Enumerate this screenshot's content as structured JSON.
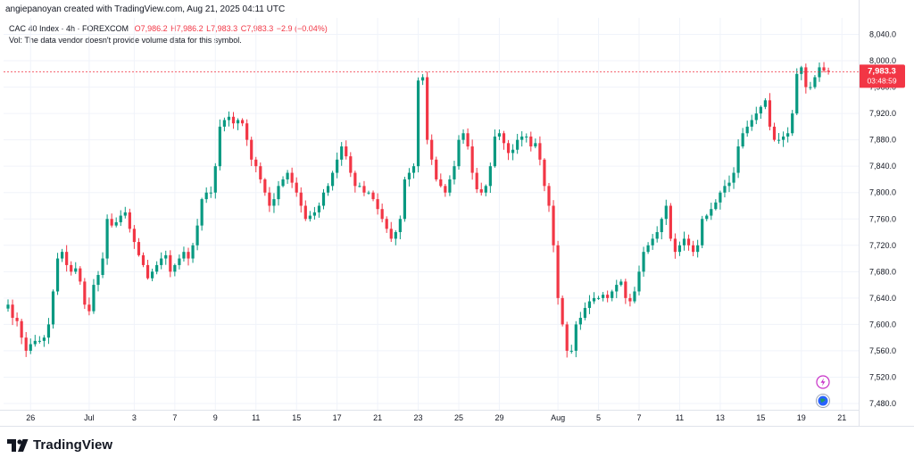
{
  "header": {
    "author_line": "angiepanoyan created with TradingView.com, Aug 21, 2025 04:11 UTC"
  },
  "legend": {
    "symbol": "CAC 40 Index · 4h · FOREXCOM",
    "open": "O7,986.2",
    "high": "H7,986.2",
    "low": "L7,983.3",
    "close": "C7,983.3",
    "change": "−2.9 (−0.04%)",
    "volume_note": "Vol: The data vendor doesn't provide volume data for this symbol."
  },
  "price_tag": {
    "price": "7,983.3",
    "countdown": "03:48:59"
  },
  "brand": {
    "name": "TradingView",
    "icon": "tradingview-logo-icon"
  },
  "side_icons": [
    "lightning-icon",
    "globe-icon"
  ],
  "colors": {
    "up": "#089981",
    "down": "#f23645",
    "grid": "#f0f3fa",
    "axis_text": "#131722"
  },
  "chart_data": {
    "type": "candlestick",
    "interval": "4h",
    "title": "",
    "xlabel": "",
    "ylabel": "",
    "ylim": [
      7460,
      8060
    ],
    "yticks": [
      8040,
      8000,
      7960,
      7920,
      7880,
      7840,
      7800,
      7760,
      7720,
      7680,
      7640,
      7600,
      7560,
      7520,
      7480
    ],
    "ytick_labels": [
      "8,040.0",
      "8,000.0",
      "7,960.0",
      "7,920.0",
      "7,880.0",
      "7,840.0",
      "7,800.0",
      "7,760.0",
      "7,720.0",
      "7,680.0",
      "7,640.0",
      "7,600.0",
      "7,560.0",
      "7,520.0",
      "7,480.0"
    ],
    "xticks": [
      {
        "label": "26",
        "index": 5
      },
      {
        "label": "Jul",
        "index": 18
      },
      {
        "label": "3",
        "index": 28
      },
      {
        "label": "7",
        "index": 37
      },
      {
        "label": "9",
        "index": 46
      },
      {
        "label": "11",
        "index": 55
      },
      {
        "label": "15",
        "index": 64
      },
      {
        "label": "17",
        "index": 73
      },
      {
        "label": "21",
        "index": 82
      },
      {
        "label": "23",
        "index": 91
      },
      {
        "label": "25",
        "index": 100
      },
      {
        "label": "29",
        "index": 109
      },
      {
        "label": "Aug",
        "index": 122
      },
      {
        "label": "5",
        "index": 131
      },
      {
        "label": "7",
        "index": 140
      },
      {
        "label": "11",
        "index": 149
      },
      {
        "label": "13",
        "index": 158
      },
      {
        "label": "15",
        "index": 167
      },
      {
        "label": "19",
        "index": 176
      },
      {
        "label": "21",
        "index": 185
      }
    ],
    "close_values": [
      7630,
      7610,
      7605,
      7580,
      7560,
      7570,
      7575,
      7575,
      7580,
      7600,
      7650,
      7700,
      7710,
      7690,
      7680,
      7685,
      7665,
      7630,
      7620,
      7660,
      7675,
      7700,
      7760,
      7750,
      7755,
      7765,
      7770,
      7745,
      7725,
      7705,
      7690,
      7670,
      7680,
      7690,
      7700,
      7705,
      7680,
      7690,
      7700,
      7710,
      7700,
      7720,
      7750,
      7790,
      7800,
      7800,
      7840,
      7900,
      7910,
      7915,
      7905,
      7910,
      7905,
      7880,
      7850,
      7840,
      7820,
      7800,
      7780,
      7790,
      7810,
      7820,
      7830,
      7815,
      7800,
      7780,
      7760,
      7765,
      7770,
      7780,
      7800,
      7810,
      7830,
      7850,
      7870,
      7855,
      7830,
      7810,
      7810,
      7800,
      7800,
      7790,
      7775,
      7760,
      7745,
      7730,
      7740,
      7760,
      7820,
      7830,
      7840,
      7970,
      7975,
      7880,
      7850,
      7820,
      7810,
      7800,
      7820,
      7840,
      7880,
      7890,
      7870,
      7830,
      7805,
      7800,
      7810,
      7840,
      7885,
      7890,
      7875,
      7860,
      7865,
      7880,
      7885,
      7885,
      7870,
      7875,
      7850,
      7810,
      7780,
      7720,
      7640,
      7600,
      7560,
      7560,
      7600,
      7610,
      7625,
      7635,
      7640,
      7640,
      7645,
      7640,
      7650,
      7660,
      7665,
      7640,
      7635,
      7650,
      7680,
      7710,
      7720,
      7730,
      7740,
      7760,
      7780,
      7730,
      7710,
      7720,
      7730,
      7720,
      7710,
      7720,
      7760,
      7765,
      7775,
      7785,
      7800,
      7810,
      7815,
      7830,
      7870,
      7890,
      7900,
      7910,
      7920,
      7930,
      7940,
      7900,
      7880,
      7880,
      7885,
      7890,
      7920,
      7980,
      7990,
      7960,
      7960,
      7975,
      7990,
      7985,
      7983.3
    ]
  }
}
